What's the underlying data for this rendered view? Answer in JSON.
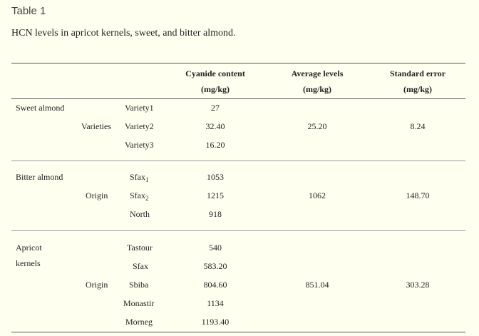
{
  "table": {
    "label": "Table 1",
    "caption": "HCN levels in apricot kernels, sweet, and bitter almond.",
    "headers": {
      "cyanide_line1": "Cyanide content",
      "cyanide_line2": "(mg/kg)",
      "average_line1": "Average levels",
      "average_line2": "(mg/kg)",
      "stderr_line1": "Standard error",
      "stderr_line2": "(mg/kg)"
    },
    "groups": [
      {
        "name_line1": "Sweet almond",
        "name_line2": "",
        "grouping": "Varieties",
        "rows": [
          {
            "label": "Variety1",
            "value": "27"
          },
          {
            "label": "Variety2",
            "value": "32.40"
          },
          {
            "label": "Variety3",
            "value": "16.20"
          }
        ],
        "average": "25.20",
        "stderr": "8.24"
      },
      {
        "name_line1": "Bitter almond",
        "name_line2": "",
        "grouping": "Origin",
        "rows": [
          {
            "label": "Sfax",
            "sub": "1",
            "value": "1053"
          },
          {
            "label": "Sfax",
            "sub": "2",
            "value": "1215"
          },
          {
            "label": "North",
            "value": "918"
          }
        ],
        "average": "1062",
        "stderr": "148.70"
      },
      {
        "name_line1": "Apricot",
        "name_line2": "kernels",
        "grouping": "Origin",
        "rows": [
          {
            "label": "Tastour",
            "value": "540"
          },
          {
            "label": "Sfax",
            "value": "583.20"
          },
          {
            "label": "Sbiba",
            "value": "804.60"
          },
          {
            "label": "Monastir",
            "value": "1134"
          },
          {
            "label": "Morneg",
            "value": "1193.40"
          }
        ],
        "average": "851.04",
        "stderr": "303.28"
      }
    ]
  }
}
